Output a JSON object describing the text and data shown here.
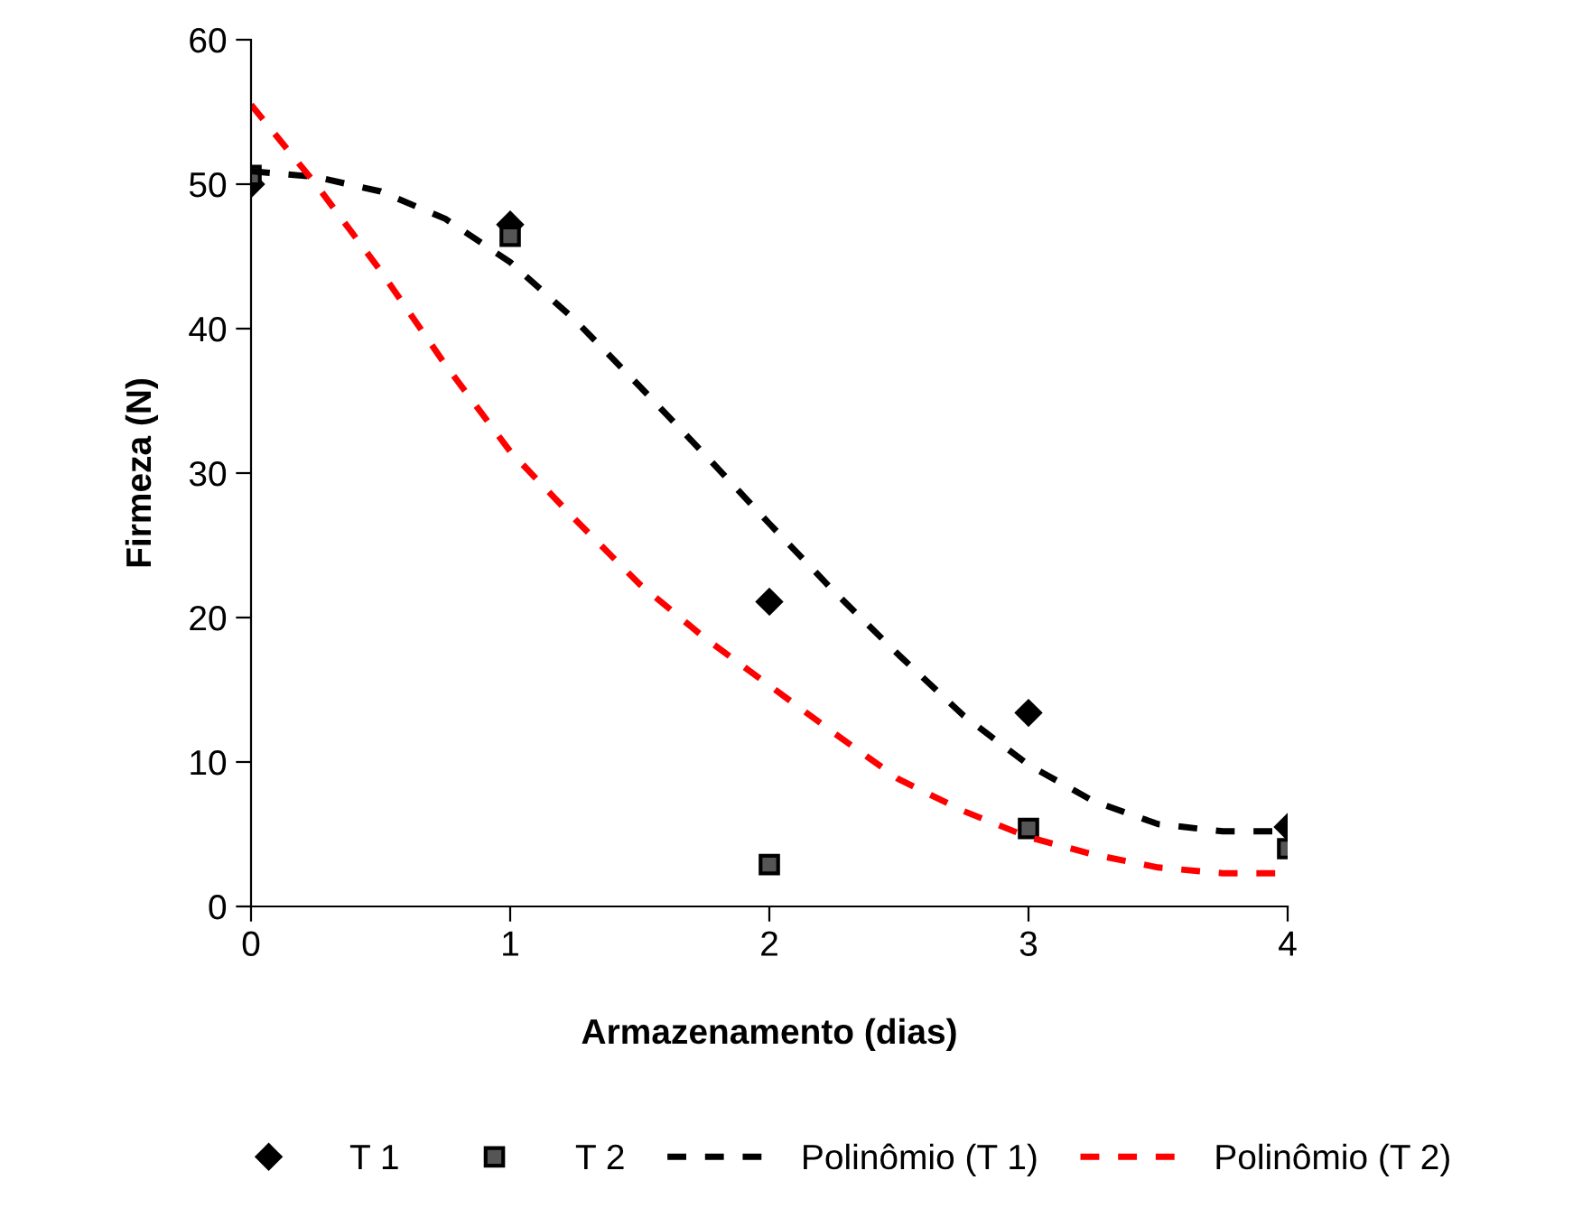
{
  "chart_data": {
    "type": "scatter",
    "xlabel": "Armazenamento (dias)",
    "ylabel": "Firmeza (N)",
    "xlim": [
      0,
      4
    ],
    "xticks": [
      0,
      1,
      2,
      3,
      4
    ],
    "ylim": [
      0,
      60
    ],
    "yticks": [
      0,
      10,
      20,
      30,
      40,
      50,
      60
    ],
    "grid": false,
    "legend": "bottom",
    "series": [
      {
        "name": "T 1",
        "marker": "diamond",
        "color": "#000000",
        "x": [
          0,
          1,
          2,
          3,
          4
        ],
        "values": [
          50.0,
          47.2,
          21.1,
          13.4,
          5.5
        ]
      },
      {
        "name": "T 2",
        "marker": "square",
        "color": "#000000",
        "x": [
          0,
          1,
          2,
          3,
          4
        ],
        "values": [
          50.6,
          46.4,
          2.9,
          5.4,
          4.0
        ]
      },
      {
        "name": "Polinômio (T 1)",
        "type": "line",
        "line_style": "dashed",
        "marker": "none",
        "color": "#000000",
        "x": [
          0,
          0.25,
          0.5,
          0.75,
          1,
          1.25,
          1.5,
          1.75,
          2,
          2.25,
          2.5,
          2.75,
          3,
          3.25,
          3.5,
          3.75,
          4
        ],
        "values": [
          50.9,
          50.5,
          49.5,
          47.6,
          44.6,
          40.6,
          36.0,
          31.3,
          26.5,
          21.8,
          17.4,
          13.2,
          9.8,
          7.3,
          5.7,
          5.2,
          5.2
        ]
      },
      {
        "name": "Polinômio (T 2)",
        "type": "line",
        "line_style": "dashed",
        "marker": "none",
        "color": "#ff0000",
        "x": [
          0,
          0.25,
          0.5,
          0.75,
          1,
          1.25,
          1.5,
          1.75,
          2,
          2.25,
          2.5,
          2.75,
          3,
          3.25,
          3.5,
          3.75,
          4
        ],
        "values": [
          55.5,
          50.0,
          44.0,
          37.5,
          31.5,
          26.8,
          22.3,
          18.6,
          15.3,
          12.0,
          8.8,
          6.6,
          4.8,
          3.6,
          2.7,
          2.3,
          2.3
        ]
      }
    ]
  }
}
